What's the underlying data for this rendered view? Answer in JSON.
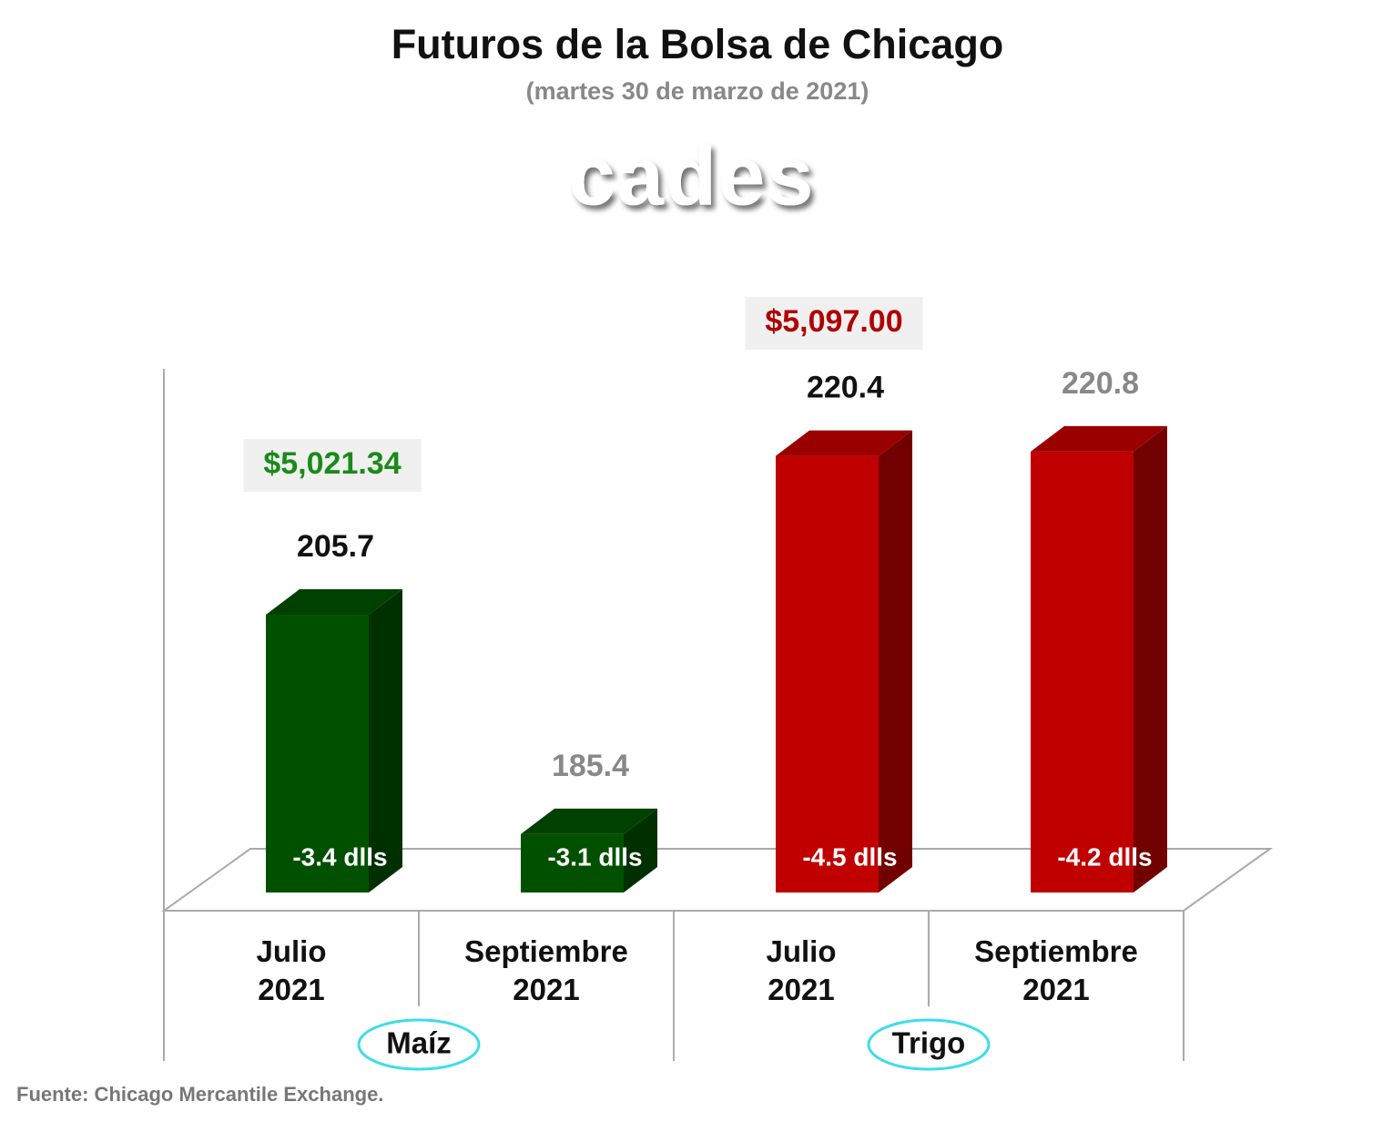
{
  "title": "Futuros de la Bolsa de Chicago",
  "subtitle": "(martes 30 de marzo de 2021)",
  "logo": "cades",
  "source": "Fuente: Chicago Mercantile Exchange.",
  "chart_data": {
    "type": "bar3d",
    "categories": [
      "Julio 2021",
      "Septiembre 2021",
      "Julio 2021",
      "Septiembre 2021"
    ],
    "values": [
      205.7,
      185.4,
      220.4,
      220.8
    ],
    "colors": [
      "#005000",
      "#005000",
      "#c00000",
      "#c00000"
    ],
    "value_label_colors": [
      "#111111",
      "#888888",
      "#111111",
      "#888888"
    ],
    "changes": [
      "-3.4 dlls",
      "-3.1 dlls",
      "-4.5 dlls",
      "-4.2 dlls"
    ],
    "groups": [
      {
        "name": "Maíz",
        "price": "$5,021.34",
        "price_color": "#1a8a1a"
      },
      {
        "name": "Trigo",
        "price": "$5,097.00",
        "price_color": "#b00000"
      }
    ],
    "ylim": [
      180,
      225
    ]
  }
}
